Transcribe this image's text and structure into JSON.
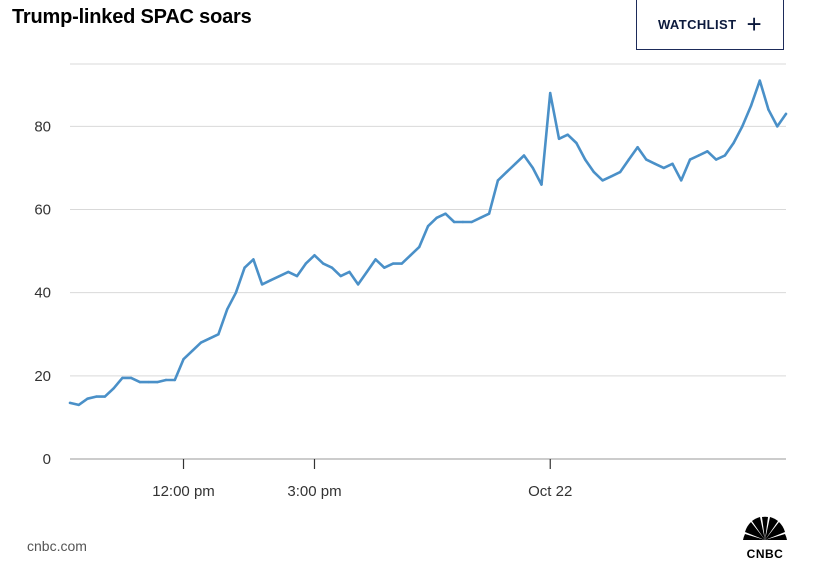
{
  "header": {
    "title": "Trump-linked SPAC soars",
    "watchlist_label": "WATCHLIST",
    "watchlist_icon": "plus-icon"
  },
  "footer": {
    "source": "cnbc.com",
    "logo_text": "CNBC",
    "logo_icon": "cnbc-peacock-icon"
  },
  "colors": {
    "line": "#4a90c8",
    "grid": "#d9d9d9",
    "axis": "#999999",
    "button_border": "#1d2b5a"
  },
  "chart_data": {
    "type": "line",
    "title": "Trump-linked SPAC soars",
    "xlabel": "",
    "ylabel": "",
    "ylim": [
      0,
      95
    ],
    "yticks": [
      0,
      20,
      40,
      60,
      80
    ],
    "x_tick_labels": [
      "12:00 pm",
      "3:00 pm",
      "Oct 22"
    ],
    "x_tick_index": [
      13,
      28,
      55
    ],
    "grid": true,
    "legend": "none",
    "series": [
      {
        "values": [
          13.5,
          13,
          14.5,
          15,
          15,
          17,
          19.5,
          19.5,
          18.5,
          18.5,
          18.5,
          19,
          19,
          24,
          26,
          28,
          29,
          30,
          36,
          40,
          46,
          48,
          42,
          43,
          44,
          45,
          44,
          47,
          49,
          47,
          46,
          44,
          45,
          42,
          45,
          48,
          46,
          47,
          47,
          49,
          51,
          56,
          58,
          59,
          57,
          57,
          57,
          58,
          59,
          67,
          69,
          71,
          73,
          70,
          66,
          88,
          77,
          78,
          76,
          72,
          69,
          67,
          68,
          69,
          72,
          75,
          72,
          71,
          70,
          71,
          67,
          72,
          73,
          74,
          72,
          73,
          76,
          80,
          85,
          91,
          84,
          80,
          83
        ]
      }
    ]
  }
}
